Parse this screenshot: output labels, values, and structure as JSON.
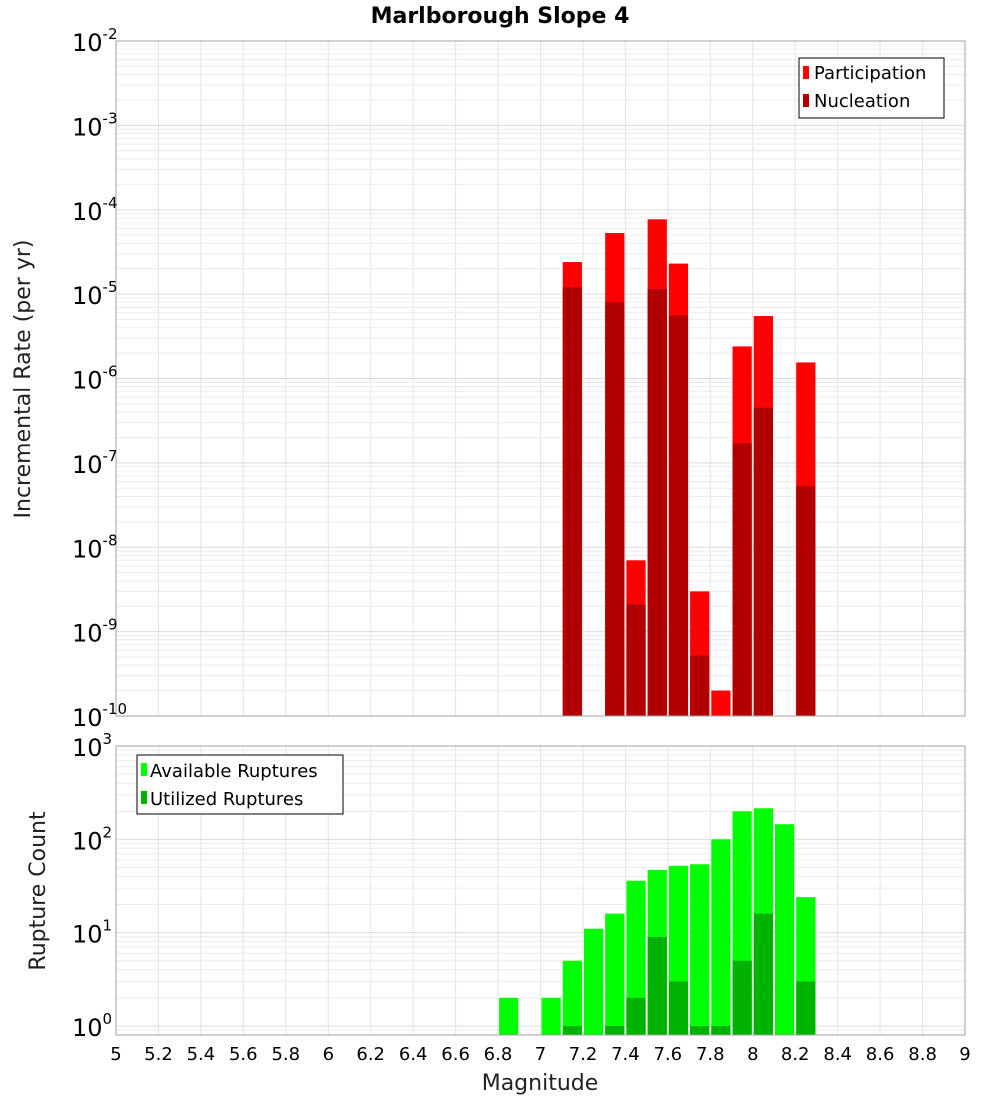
{
  "chart_data": [
    {
      "type": "bar",
      "title": "Marlborough Slope 4",
      "xlabel": "",
      "ylabel": "Incremental Rate (per yr)",
      "y_scale": "log",
      "ylim": [
        1e-10,
        0.01
      ],
      "xlim": [
        5,
        9
      ],
      "grid": true,
      "legend_position": "top-right",
      "x": [
        7.15,
        7.35,
        7.45,
        7.55,
        7.65,
        7.75,
        7.85,
        7.95,
        8.05,
        8.25
      ],
      "series": [
        {
          "name": "Participation",
          "color": "#ff0000",
          "values": [
            2.4e-05,
            5.3e-05,
            7e-09,
            7.7e-05,
            2.3e-05,
            3e-09,
            2e-10,
            2.4e-06,
            5.5e-06,
            1.55e-06
          ]
        },
        {
          "name": "Nucleation",
          "color": "#b20000",
          "values": [
            1.2e-05,
            8e-06,
            2.1e-09,
            1.15e-05,
            5.6e-06,
            5.2e-10,
            null,
            1.7e-07,
            4.5e-07,
            5.3e-08
          ]
        }
      ],
      "yticks": [
        {
          "base": "10",
          "exp": "-10"
        },
        {
          "base": "10",
          "exp": "-9"
        },
        {
          "base": "10",
          "exp": "-8"
        },
        {
          "base": "10",
          "exp": "-7"
        },
        {
          "base": "10",
          "exp": "-6"
        },
        {
          "base": "10",
          "exp": "-5"
        },
        {
          "base": "10",
          "exp": "-4"
        },
        {
          "base": "10",
          "exp": "-3"
        },
        {
          "base": "10",
          "exp": "-2"
        }
      ]
    },
    {
      "type": "bar",
      "title": "",
      "xlabel": "Magnitude",
      "ylabel": "Rupture Count",
      "y_scale": "log",
      "ylim": [
        0.8,
        1000
      ],
      "xlim": [
        5,
        9
      ],
      "grid": true,
      "legend_position": "top-left",
      "x": [
        6.85,
        7.05,
        7.15,
        7.25,
        7.35,
        7.45,
        7.55,
        7.65,
        7.75,
        7.85,
        7.95,
        8.05,
        8.15,
        8.25
      ],
      "series": [
        {
          "name": "Available Ruptures",
          "color": "#00ff00",
          "values": [
            2,
            2,
            5,
            11,
            16,
            36,
            47,
            52,
            54,
            100,
            200,
            215,
            145,
            24
          ]
        },
        {
          "name": "Utilized Ruptures",
          "color": "#00b200",
          "values": [
            null,
            null,
            1,
            null,
            1,
            2,
            9,
            3,
            1,
            1,
            5,
            16,
            null,
            3
          ]
        }
      ],
      "yticks": [
        {
          "base": "10",
          "exp": "0"
        },
        {
          "base": "10",
          "exp": "1"
        },
        {
          "base": "10",
          "exp": "2"
        },
        {
          "base": "10",
          "exp": "3"
        }
      ],
      "xticks": [
        "5",
        "5.2",
        "5.4",
        "5.6",
        "5.8",
        "6",
        "6.2",
        "6.4",
        "6.6",
        "6.8",
        "7",
        "7.2",
        "7.4",
        "7.6",
        "7.8",
        "8",
        "8.2",
        "8.4",
        "8.6",
        "8.8",
        "9"
      ]
    }
  ]
}
